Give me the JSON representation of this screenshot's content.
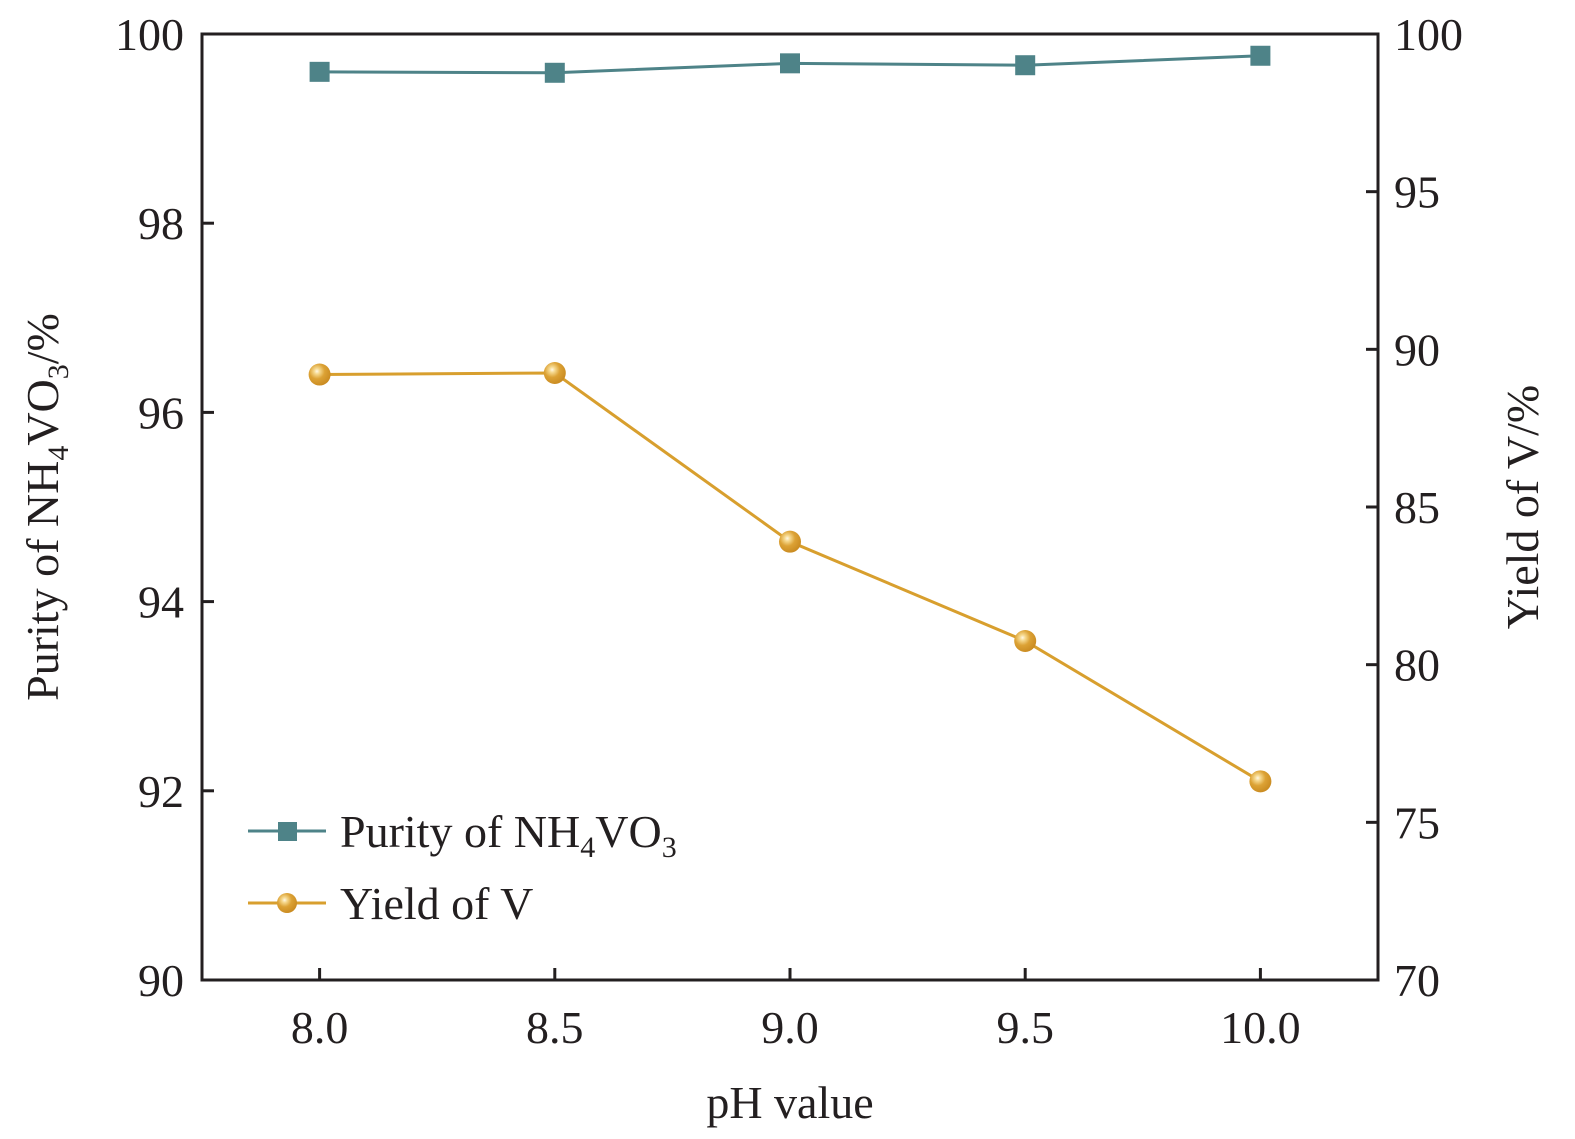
{
  "chart_data": {
    "type": "line",
    "title": "",
    "xlabel": "pH value",
    "ylabel_left": {
      "prefix": "Purity of  NH",
      "sub1": "4",
      "mid": "VO",
      "sub2": "3",
      "suffix": "/%"
    },
    "ylabel_right": "Yield of  V/%",
    "x": [
      8.0,
      8.5,
      9.0,
      9.5,
      10.0
    ],
    "x_tick_labels": [
      "8.0",
      "8.5",
      "9.0",
      "9.5",
      "10.0"
    ],
    "xlim": [
      7.75,
      10.25
    ],
    "ylim_left": [
      90,
      100
    ],
    "ylim_right": [
      70,
      100
    ],
    "y_left_ticks": [
      90,
      92,
      94,
      96,
      98,
      100
    ],
    "y_left_tick_labels": [
      "90",
      "92",
      "94",
      "96",
      "98",
      "100"
    ],
    "y_right_ticks": [
      70,
      75,
      80,
      85,
      90,
      95,
      100
    ],
    "y_right_tick_labels": [
      "70",
      "75",
      "80",
      "85",
      "90",
      "95",
      "100"
    ],
    "grid": false,
    "legend_position": "lower-left",
    "series": [
      {
        "name": "Purity of NH4VO3",
        "legend": {
          "prefix": "Purity of  NH",
          "sub1": "4",
          "mid": "VO",
          "sub2": "3"
        },
        "axis": "left",
        "marker": "square",
        "color": "#4e8388",
        "values": [
          99.6,
          99.59,
          99.69,
          99.67,
          99.77
        ]
      },
      {
        "name": "Yield of V",
        "legend": {
          "prefix": "Yield of  V"
        },
        "axis": "right",
        "marker": "sphere",
        "color": "#d89f2e",
        "values": [
          89.2,
          89.25,
          83.9,
          80.75,
          76.3
        ]
      }
    ]
  }
}
